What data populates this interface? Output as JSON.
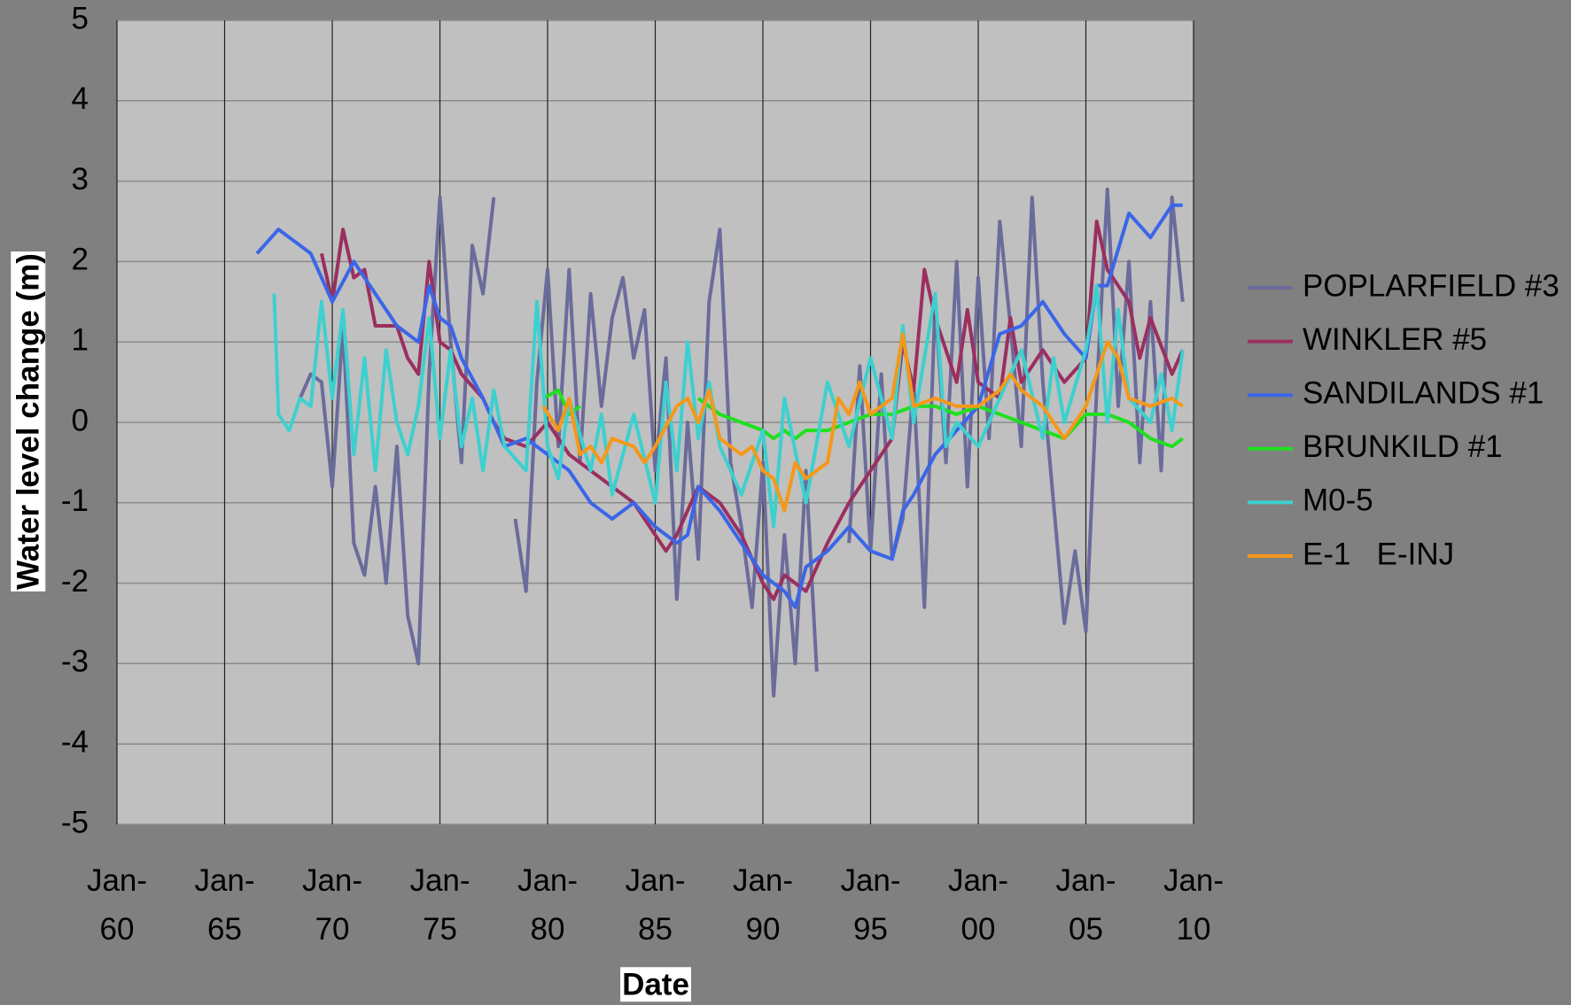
{
  "chart_data": {
    "type": "line",
    "x_label": "Date",
    "y_label": "Water level change (m)",
    "xlim": [
      1960,
      2010
    ],
    "xticks": [
      {
        "value": 1960,
        "label": "Jan-60"
      },
      {
        "value": 1965,
        "label": "Jan-65"
      },
      {
        "value": 1970,
        "label": "Jan-70"
      },
      {
        "value": 1975,
        "label": "Jan-75"
      },
      {
        "value": 1980,
        "label": "Jan-80"
      },
      {
        "value": 1985,
        "label": "Jan-85"
      },
      {
        "value": 1990,
        "label": "Jan-90"
      },
      {
        "value": 1995,
        "label": "Jan-95"
      },
      {
        "value": 2000,
        "label": "Jan-00"
      },
      {
        "value": 2005,
        "label": "Jan-05"
      },
      {
        "value": 2010,
        "label": "Jan-10"
      }
    ],
    "ylim": [
      -5,
      5
    ],
    "yticks": [
      -5,
      -4,
      -3,
      -2,
      -1,
      0,
      1,
      2,
      3,
      4,
      5
    ],
    "grid": true,
    "legend": "right",
    "series": [
      {
        "name": "POPLARFIELD #3",
        "color": "#6b6b9c",
        "x": [
          1968.5,
          1969,
          1969.5,
          1970,
          1970.5,
          1971,
          1971.5,
          1972,
          1972.5,
          1973,
          1973.5,
          1974,
          1974.5,
          1975,
          1975.5,
          1976,
          1976.5,
          1977,
          1977.5,
          1978,
          1978.5,
          1979,
          1979.5,
          1980,
          1980.5,
          1981,
          1981.5,
          1982,
          1982.5,
          1983,
          1983.5,
          1984,
          1984.5,
          1985,
          1985.5,
          1986,
          1986.5,
          1987,
          1987.5,
          1988,
          1988.5,
          1989,
          1989.5,
          1990,
          1990.5,
          1991,
          1991.5,
          1992,
          1992.5,
          1993,
          1994,
          1994.5,
          1995,
          1995.5,
          1996,
          1996.5,
          1997,
          1997.5,
          1998,
          1998.5,
          1999,
          1999.5,
          2000,
          2000.5,
          2001,
          2001.5,
          2002,
          2002.5,
          2003,
          2003.5,
          2004,
          2004.5,
          2005,
          2005.5,
          2006,
          2006.5,
          2007,
          2007.5,
          2008,
          2008.5,
          2009,
          2009.5
        ],
        "values": [
          0.3,
          0.6,
          0.5,
          -0.8,
          1.2,
          -1.5,
          -1.9,
          -0.8,
          -2.0,
          -0.3,
          -2.4,
          -3.0,
          0.6,
          2.8,
          1.0,
          -0.5,
          2.2,
          1.6,
          2.8,
          null,
          -1.2,
          -2.1,
          0.5,
          1.9,
          -0.3,
          1.9,
          -0.5,
          1.6,
          0.2,
          1.3,
          1.8,
          0.8,
          1.4,
          -0.6,
          0.8,
          -2.2,
          0.0,
          -1.7,
          1.5,
          2.4,
          -0.5,
          -1.3,
          -2.3,
          -0.5,
          -3.4,
          -1.4,
          -3.0,
          -0.6,
          -3.1,
          null,
          -1.5,
          0.7,
          -1.6,
          0.6,
          -1.7,
          -1.2,
          0.5,
          -2.3,
          1.5,
          -0.5,
          2.0,
          -0.8,
          1.8,
          -0.2,
          2.5,
          1.2,
          -0.3,
          2.8,
          0.5,
          -1.0,
          -2.5,
          -1.6,
          -2.6,
          0.4,
          2.9,
          0.2,
          2.0,
          -0.5,
          1.5,
          -0.6,
          2.8,
          1.5
        ]
      },
      {
        "name": "WINKLER #5",
        "color": "#9b2f5f",
        "x": [
          1969.5,
          1970,
          1970.5,
          1971,
          1971.5,
          1972,
          1973,
          1973.5,
          1974,
          1974.5,
          1975,
          1975.5,
          1976,
          1977,
          1977.5,
          1978,
          1979,
          1980,
          1981,
          1982,
          1983,
          1984,
          1985,
          1985.5,
          1986,
          1987,
          1988,
          1989,
          1990,
          1990.5,
          1991,
          1992,
          1993,
          1994,
          1994.5,
          1995,
          1996,
          1996.5,
          1997,
          1997.5,
          1998,
          1999,
          1999.5,
          2000,
          2001,
          2001.5,
          2002,
          2003,
          2004,
          2005,
          2005.5,
          2006,
          2007,
          2007.5,
          2008,
          2009,
          2009.5
        ],
        "values": [
          2.1,
          1.5,
          2.4,
          1.8,
          1.9,
          1.2,
          1.2,
          0.8,
          0.6,
          2.0,
          1.0,
          0.9,
          0.6,
          0.3,
          0.0,
          -0.2,
          -0.3,
          0.0,
          -0.4,
          -0.6,
          -0.8,
          -1.0,
          -1.4,
          -1.6,
          -1.4,
          -0.8,
          -1.0,
          -1.4,
          -2.0,
          -2.2,
          -1.9,
          -2.1,
          -1.5,
          -1.0,
          -0.8,
          -0.6,
          -0.2,
          1.0,
          0.4,
          1.9,
          1.3,
          0.5,
          1.4,
          0.5,
          0.3,
          1.3,
          0.5,
          0.9,
          0.5,
          0.8,
          2.5,
          1.9,
          1.5,
          0.8,
          1.3,
          0.6,
          0.9
        ]
      },
      {
        "name": "SANDILANDS #1",
        "color": "#3a66e8",
        "x": [
          1966.5,
          1967.5,
          1968.5,
          1969,
          1969.5,
          1970,
          1971,
          1972,
          1973,
          1974,
          1974.5,
          1975,
          1975.5,
          1976,
          1977,
          1978,
          1979,
          1980,
          1981,
          1982,
          1983,
          1984,
          1985,
          1986,
          1986.5,
          1987,
          1988,
          1989,
          1990,
          1991,
          1991.5,
          1992,
          1993,
          1994,
          1995,
          1996,
          1996.5,
          1997,
          1998,
          1999,
          2000,
          2001,
          2002,
          2003,
          2004,
          2005,
          2005.5,
          2006,
          2007,
          2008,
          2009,
          2009.5
        ],
        "values": [
          2.1,
          2.4,
          2.2,
          2.1,
          1.8,
          1.5,
          2.0,
          1.6,
          1.2,
          1.0,
          1.7,
          1.3,
          1.2,
          0.8,
          0.3,
          -0.3,
          -0.2,
          -0.4,
          -0.6,
          -1.0,
          -1.2,
          -1.0,
          -1.3,
          -1.5,
          -1.4,
          -0.8,
          -1.1,
          -1.5,
          -1.9,
          -2.1,
          -2.3,
          -1.8,
          -1.6,
          -1.3,
          -1.6,
          -1.7,
          -1.1,
          -0.9,
          -0.4,
          -0.1,
          0.2,
          1.1,
          1.2,
          1.5,
          1.1,
          0.8,
          1.7,
          1.7,
          2.6,
          2.3,
          2.7,
          2.7
        ]
      },
      {
        "name": "BRUNKILD #1",
        "color": "#1fe01f",
        "x": [
          1979.8,
          1980.5,
          1981,
          1981.5,
          1984,
          1987,
          1988,
          1989,
          1990,
          1990.5,
          1991,
          1991.5,
          1992,
          1993,
          1994,
          1995,
          1996,
          1997,
          1998,
          1999,
          2000,
          2001,
          2002,
          2003,
          2004,
          2005,
          2006,
          2007,
          2008,
          2009,
          2009.5
        ],
        "values": [
          0.3,
          0.4,
          0.1,
          0.2,
          null,
          0.3,
          0.1,
          0.0,
          -0.1,
          -0.2,
          -0.1,
          -0.2,
          -0.1,
          -0.1,
          0.0,
          0.1,
          0.1,
          0.2,
          0.2,
          0.1,
          0.2,
          0.1,
          0.0,
          -0.1,
          -0.2,
          0.1,
          0.1,
          0.0,
          -0.2,
          -0.3,
          -0.2
        ]
      },
      {
        "name": "M0-5",
        "color": "#3dd0cf",
        "x": [
          1967.3,
          1967.5,
          1968,
          1968.5,
          1969,
          1969.5,
          1970,
          1970.5,
          1971,
          1971.5,
          1972,
          1972.5,
          1973,
          1973.5,
          1974,
          1974.5,
          1975,
          1975.5,
          1976,
          1976.5,
          1977,
          1977.5,
          1978,
          1979,
          1979.5,
          1980,
          1980.5,
          1981,
          1982,
          1982.5,
          1983,
          1984,
          1985,
          1985.5,
          1986,
          1986.5,
          1987,
          1987.5,
          1988,
          1989,
          1990,
          1990.5,
          1991,
          1992,
          1993,
          1994,
          1995,
          1996,
          1996.5,
          1997,
          1998,
          1998.5,
          1999,
          2000,
          2001,
          2002,
          2003,
          2003.5,
          2004,
          2005,
          2005.5,
          2006,
          2006.5,
          2007,
          2008,
          2008.5,
          2009,
          2009.5
        ],
        "values": [
          1.6,
          0.1,
          -0.1,
          0.3,
          0.2,
          1.5,
          0.3,
          1.4,
          -0.4,
          0.8,
          -0.6,
          0.9,
          0.0,
          -0.4,
          0.2,
          1.3,
          -0.2,
          0.9,
          -0.3,
          0.3,
          -0.6,
          0.4,
          -0.3,
          -0.6,
          1.5,
          -0.3,
          -0.7,
          0.3,
          -0.6,
          0.1,
          -0.9,
          0.1,
          -1.0,
          0.5,
          -0.6,
          1.0,
          -0.2,
          0.5,
          -0.3,
          -0.9,
          -0.1,
          -1.3,
          0.3,
          -1.0,
          0.5,
          -0.3,
          0.8,
          -0.2,
          1.2,
          0.0,
          1.6,
          -0.3,
          0.0,
          -0.3,
          0.3,
          0.9,
          -0.2,
          0.8,
          0.0,
          0.9,
          1.7,
          0.0,
          1.4,
          0.3,
          0.0,
          0.6,
          -0.1,
          0.9
        ]
      },
      {
        "name": "E-1   E-INJ",
        "color": "#f5981a",
        "x": [
          1979.8,
          1980.5,
          1981,
          1981.5,
          1982,
          1982.5,
          1983,
          1984,
          1984.5,
          1985,
          1986,
          1986.5,
          1987,
          1987.5,
          1988,
          1989,
          1989.5,
          1990,
          1990.5,
          1991,
          1991.5,
          1992,
          1993,
          1993.5,
          1994,
          1994.5,
          1995,
          1996,
          1996.5,
          1997,
          1998,
          1999,
          2000,
          2001,
          2001.5,
          2002,
          2003,
          2004,
          2005,
          2005.5,
          2006,
          2006.5,
          2007,
          2008,
          2009,
          2009.5
        ],
        "values": [
          0.2,
          -0.1,
          0.3,
          -0.4,
          -0.3,
          -0.5,
          -0.2,
          -0.3,
          -0.5,
          -0.3,
          0.2,
          0.3,
          0.0,
          0.4,
          -0.2,
          -0.4,
          -0.3,
          -0.6,
          -0.7,
          -1.1,
          -0.5,
          -0.7,
          -0.5,
          0.3,
          0.1,
          0.5,
          0.1,
          0.3,
          1.1,
          0.2,
          0.3,
          0.2,
          0.2,
          0.4,
          0.6,
          0.4,
          0.2,
          -0.2,
          0.2,
          0.6,
          1.0,
          0.8,
          0.3,
          0.2,
          0.3,
          0.2
        ]
      }
    ]
  }
}
